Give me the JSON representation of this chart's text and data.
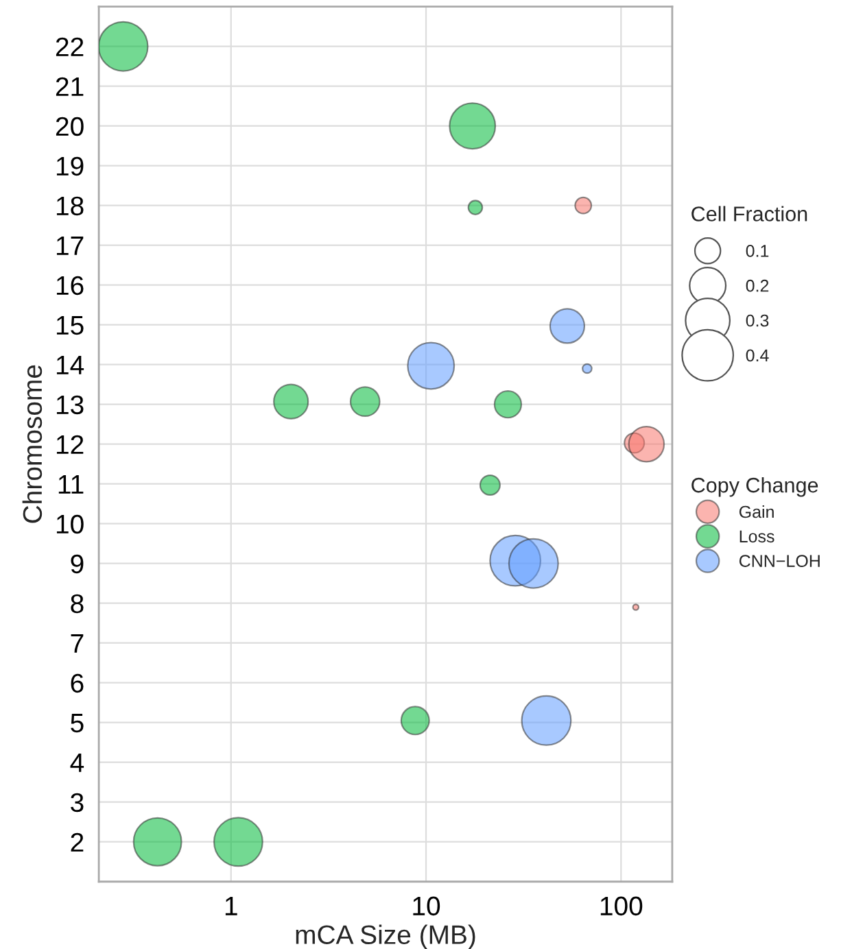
{
  "chart_data": {
    "type": "bubble",
    "xlabel": "mCA Size (MB)",
    "ylabel": "Chromosome",
    "log": "x",
    "xlim": [
      0.21,
      183
    ],
    "xticks": [
      1,
      10,
      100
    ],
    "ylim": [
      1.0,
      23.0
    ],
    "yticks": [
      2,
      3,
      4,
      5,
      6,
      7,
      8,
      9,
      10,
      11,
      12,
      13,
      14,
      15,
      16,
      17,
      18,
      19,
      20,
      21,
      22
    ],
    "grid": true,
    "legend": "right",
    "legend_title": "Copy Change",
    "annotations": [
      "Cell Fraction"
    ],
    "size_legend": [
      0.1,
      0.2,
      0.3,
      0.4
    ],
    "series": [
      {
        "name": "Gain",
        "color": "#F8766D",
        "x": [
          64,
          117,
          135,
          119
        ],
        "values": [
          18.0,
          12.03,
          12.0,
          7.9
        ],
        "sizes": [
          0.04,
          0.06,
          0.19,
          0.005
        ]
      },
      {
        "name": "Loss",
        "color": "#00BA38",
        "x": [
          0.28,
          17.3,
          17.9,
          2.03,
          4.87,
          26.3,
          21.3,
          8.8,
          0.42,
          1.09
        ],
        "values": [
          22.0,
          20.0,
          17.95,
          13.07,
          13.07,
          13.0,
          10.97,
          5.05,
          2.0,
          2.0
        ],
        "sizes": [
          0.37,
          0.32,
          0.03,
          0.18,
          0.13,
          0.11,
          0.06,
          0.12,
          0.35,
          0.36
        ]
      },
      {
        "name": "CNN−LOH",
        "color": "#619CFF",
        "x": [
          53,
          10.6,
          67,
          28.7,
          35.6,
          41.4
        ],
        "values": [
          14.97,
          13.97,
          13.9,
          9.07,
          9.0,
          5.05
        ],
        "sizes": [
          0.18,
          0.33,
          0.013,
          0.39,
          0.37,
          0.37
        ]
      }
    ]
  }
}
